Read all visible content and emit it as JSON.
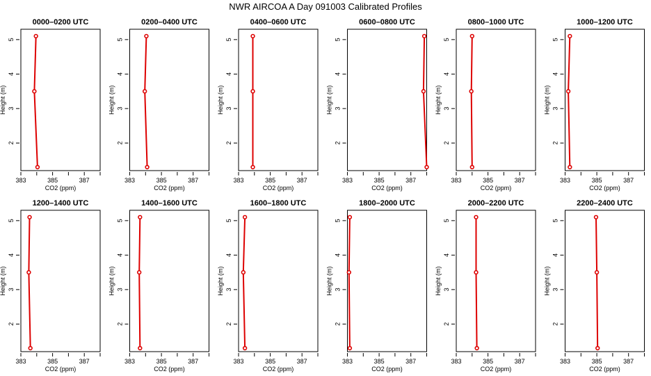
{
  "figure_title": "NWR AIRCOA A  Day 091003  Calibrated Profiles",
  "colors": {
    "series": "#dd0000",
    "frame": "#000000",
    "background": "#ffffff"
  },
  "chart_data": [
    {
      "type": "line",
      "title": "0000–0200 UTC",
      "xlabel": "CO2 (ppm)",
      "ylabel": "Height (m)",
      "xlim": [
        383,
        388
      ],
      "ylim": [
        1.2,
        5.3
      ],
      "xticks": [
        383,
        385,
        387
      ],
      "yticks": [
        2,
        3,
        4,
        5
      ],
      "grid": false,
      "x": [
        383.95,
        383.85,
        384.05
      ],
      "y": [
        5.1,
        3.5,
        1.3
      ]
    },
    {
      "type": "line",
      "title": "0200–0400 UTC",
      "xlabel": "CO2 (ppm)",
      "ylabel": "Height (m)",
      "xlim": [
        383,
        388
      ],
      "ylim": [
        1.2,
        5.3
      ],
      "xticks": [
        383,
        385,
        387
      ],
      "yticks": [
        2,
        3,
        4,
        5
      ],
      "grid": false,
      "x": [
        384.05,
        383.95,
        384.1
      ],
      "y": [
        5.1,
        3.5,
        1.3
      ]
    },
    {
      "type": "line",
      "title": "0400–0600 UTC",
      "xlabel": "CO2 (ppm)",
      "ylabel": "Height (m)",
      "xlim": [
        383,
        388
      ],
      "ylim": [
        1.2,
        5.3
      ],
      "xticks": [
        383,
        385,
        387
      ],
      "yticks": [
        2,
        3,
        4,
        5
      ],
      "grid": false,
      "x": [
        383.9,
        383.9,
        383.9
      ],
      "y": [
        5.1,
        3.5,
        1.3
      ]
    },
    {
      "type": "line",
      "title": "0600–0800 UTC",
      "xlabel": "CO2 (ppm)",
      "ylabel": "Height (m)",
      "xlim": [
        383,
        388
      ],
      "ylim": [
        1.2,
        5.3
      ],
      "xticks": [
        383,
        385,
        387
      ],
      "yticks": [
        2,
        3,
        4,
        5
      ],
      "grid": false,
      "x": [
        387.85,
        387.8,
        388.0
      ],
      "y": [
        5.1,
        3.5,
        1.3
      ]
    },
    {
      "type": "line",
      "title": "0800–1000 UTC",
      "xlabel": "CO2 (ppm)",
      "ylabel": "Height (m)",
      "xlim": [
        383,
        388
      ],
      "ylim": [
        1.2,
        5.3
      ],
      "xticks": [
        383,
        385,
        387
      ],
      "yticks": [
        2,
        3,
        4,
        5
      ],
      "grid": false,
      "x": [
        384.0,
        383.95,
        384.0
      ],
      "y": [
        5.1,
        3.5,
        1.3
      ]
    },
    {
      "type": "line",
      "title": "1000–1200 UTC",
      "xlabel": "CO2 (ppm)",
      "ylabel": "Height (m)",
      "xlim": [
        383,
        388
      ],
      "ylim": [
        1.2,
        5.3
      ],
      "xticks": [
        383,
        385,
        387
      ],
      "yticks": [
        2,
        3,
        4,
        5
      ],
      "grid": false,
      "x": [
        383.3,
        383.2,
        383.3
      ],
      "y": [
        5.1,
        3.5,
        1.3
      ]
    },
    {
      "type": "line",
      "title": "1200–1400 UTC",
      "xlabel": "CO2 (ppm)",
      "ylabel": "Height (m)",
      "xlim": [
        383,
        388
      ],
      "ylim": [
        1.2,
        5.3
      ],
      "xticks": [
        383,
        385,
        387
      ],
      "yticks": [
        2,
        3,
        4,
        5
      ],
      "grid": false,
      "x": [
        383.55,
        383.5,
        383.6
      ],
      "y": [
        5.1,
        3.5,
        1.3
      ]
    },
    {
      "type": "line",
      "title": "1400–1600 UTC",
      "xlabel": "CO2 (ppm)",
      "ylabel": "Height (m)",
      "xlim": [
        383,
        388
      ],
      "ylim": [
        1.2,
        5.3
      ],
      "xticks": [
        383,
        385,
        387
      ],
      "yticks": [
        2,
        3,
        4,
        5
      ],
      "grid": false,
      "x": [
        383.65,
        383.6,
        383.65
      ],
      "y": [
        5.1,
        3.5,
        1.3
      ]
    },
    {
      "type": "line",
      "title": "1600–1800 UTC",
      "xlabel": "CO2 (ppm)",
      "ylabel": "Height (m)",
      "xlim": [
        383,
        388
      ],
      "ylim": [
        1.2,
        5.3
      ],
      "xticks": [
        383,
        385,
        387
      ],
      "yticks": [
        2,
        3,
        4,
        5
      ],
      "grid": false,
      "x": [
        383.4,
        383.3,
        383.4
      ],
      "y": [
        5.1,
        3.5,
        1.3
      ]
    },
    {
      "type": "line",
      "title": "1800–2000 UTC",
      "xlabel": "CO2 (ppm)",
      "ylabel": "Height (m)",
      "xlim": [
        383,
        388
      ],
      "ylim": [
        1.2,
        5.3
      ],
      "xticks": [
        383,
        385,
        387
      ],
      "yticks": [
        2,
        3,
        4,
        5
      ],
      "grid": false,
      "x": [
        383.15,
        383.1,
        383.15
      ],
      "y": [
        5.1,
        3.5,
        1.3
      ]
    },
    {
      "type": "line",
      "title": "2000–2200 UTC",
      "xlabel": "CO2 (ppm)",
      "ylabel": "Height (m)",
      "xlim": [
        383,
        388
      ],
      "ylim": [
        1.2,
        5.3
      ],
      "xticks": [
        383,
        385,
        387
      ],
      "yticks": [
        2,
        3,
        4,
        5
      ],
      "grid": false,
      "x": [
        384.25,
        384.25,
        384.3
      ],
      "y": [
        5.1,
        3.5,
        1.3
      ]
    },
    {
      "type": "line",
      "title": "2200–2400 UTC",
      "xlabel": "CO2 (ppm)",
      "ylabel": "Height (m)",
      "xlim": [
        383,
        388
      ],
      "ylim": [
        1.2,
        5.3
      ],
      "xticks": [
        383,
        385,
        387
      ],
      "yticks": [
        2,
        3,
        4,
        5
      ],
      "grid": false,
      "x": [
        384.95,
        385.0,
        385.05
      ],
      "y": [
        5.1,
        3.5,
        1.3
      ]
    }
  ]
}
